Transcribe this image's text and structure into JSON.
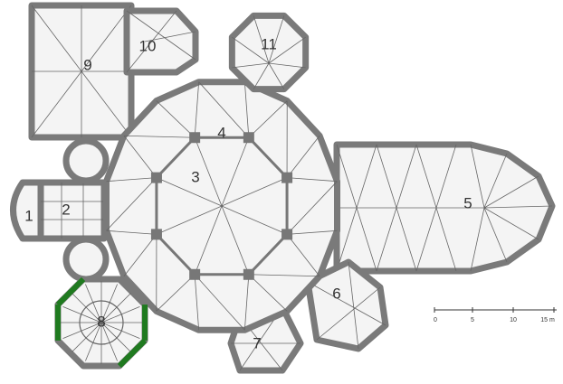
{
  "rooms": [
    "1",
    "2",
    "3",
    "4",
    "5",
    "6",
    "7",
    "8",
    "9",
    "10",
    "11"
  ],
  "scale": [
    "0",
    "5",
    "10",
    "15 m"
  ]
}
